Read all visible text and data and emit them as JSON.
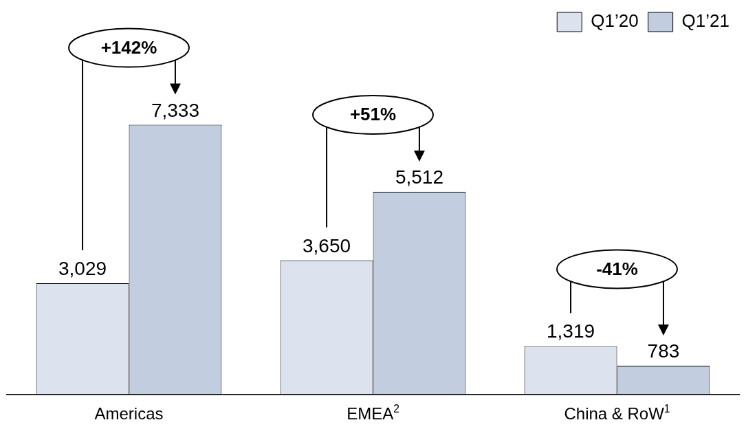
{
  "chart_data": {
    "type": "bar",
    "categories": [
      "Americas",
      "EMEA$^{2}$",
      "China & RoW$^{1}$"
    ],
    "series": [
      {
        "name": "Q1’20",
        "color": "#dde3ee",
        "values": [
          3029,
          3650,
          1319
        ],
        "value_labels": [
          "3,029",
          "3,650",
          "1,319"
        ]
      },
      {
        "name": "Q1’21",
        "color": "#c3cde0",
        "values": [
          7333,
          5512,
          783
        ],
        "value_labels": [
          "7,333",
          "5,512",
          "783"
        ]
      }
    ],
    "legend": "top right",
    "grid": false,
    "annotations": [
      "+142%",
      "+51%",
      "-41%"
    ]
  }
}
